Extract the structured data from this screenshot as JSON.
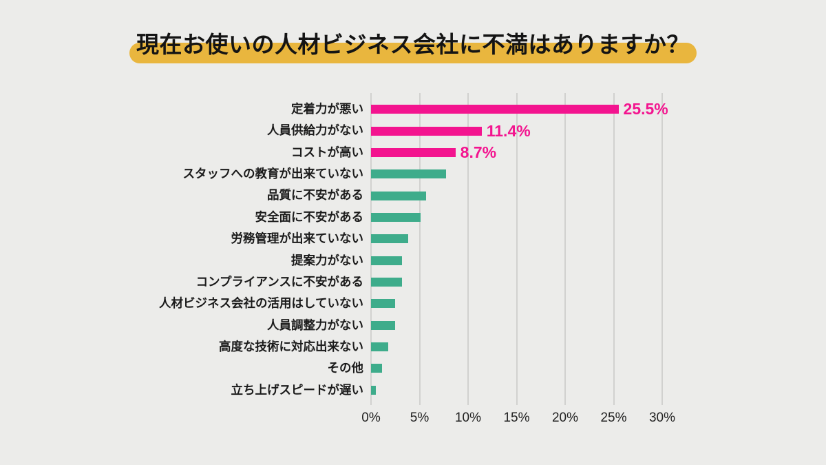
{
  "title": "現在お使いの人材ビジネス会社に不満はありますか？",
  "colors": {
    "background": "#ECECEA",
    "title_text": "#141414",
    "title_highlight": "#E9B63E",
    "gridline": "#D1D1CF",
    "bar_highlighted": "#F3148F",
    "bar_default": "#3EAC8B",
    "value_label": "#F3148F",
    "category_label": "#1B1B1B",
    "axis_label": "#222222"
  },
  "chart_data": {
    "type": "bar",
    "orientation": "horizontal",
    "title": "現在お使いの人材ビジネス会社に不満はありますか？",
    "categories": [
      "定着力が悪い",
      "人員供給力がない",
      "コストが高い",
      "スタッフへの教育が出来ていない",
      "品質に不安がある",
      "安全面に不安がある",
      "労務管理が出来ていない",
      "提案力がない",
      "コンプライアンスに不安がある",
      "人材ビジネス会社の活用はしていない",
      "人員調整力がない",
      "高度な技術に対応出来ない",
      "その他",
      "立ち上げスピードが遅い"
    ],
    "values": [
      25.5,
      11.4,
      8.7,
      7.7,
      5.7,
      5.1,
      3.8,
      3.2,
      3.2,
      2.5,
      2.5,
      1.8,
      1.1,
      0.5
    ],
    "data_labels": [
      "25.5%",
      "11.4%",
      "8.7%",
      "",
      "",
      "",
      "",
      "",
      "",
      "",
      "",
      "",
      "",
      ""
    ],
    "highlighted_bars": 3,
    "x_ticks": [
      "0%",
      "5%",
      "10%",
      "15%",
      "20%",
      "25%",
      "30%"
    ],
    "xlim": [
      0,
      30
    ],
    "xlabel": "",
    "ylabel": "",
    "grid": true,
    "legend": "none"
  }
}
